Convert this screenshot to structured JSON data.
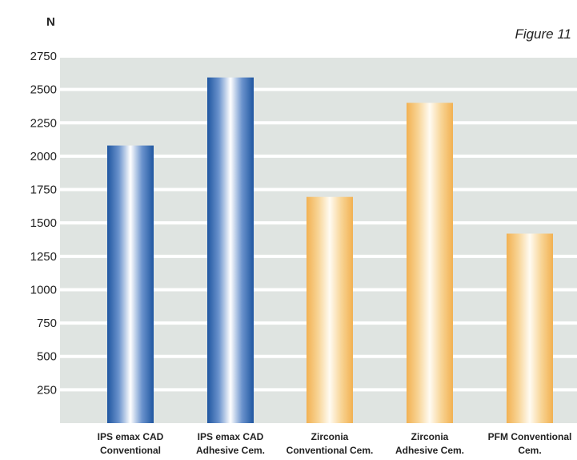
{
  "chart_data": {
    "type": "bar",
    "title": "",
    "figure_label": "Figure 11",
    "ylabel": "N",
    "xlabel": "",
    "ylim": [
      0,
      2750
    ],
    "yticks": [
      250,
      500,
      750,
      1000,
      1250,
      1500,
      1750,
      2000,
      2250,
      2500,
      2750
    ],
    "grid": true,
    "categories": [
      [
        "IPS emax CAD",
        "Conventional"
      ],
      [
        "IPS emax CAD",
        "Adhesive Cem."
      ],
      [
        "Zirconia",
        "Conventional Cem."
      ],
      [
        "Zirconia",
        "Adhesive Cem."
      ],
      [
        "PFM Conventional",
        "Cem."
      ]
    ],
    "values": [
      2080,
      2590,
      1695,
      2400,
      1420
    ],
    "bar_colors": [
      "#2a63a8",
      "#2a63a8",
      "#f3b55a",
      "#f3b55a",
      "#f3b55a"
    ],
    "panel_color": "#dfe4e1"
  }
}
